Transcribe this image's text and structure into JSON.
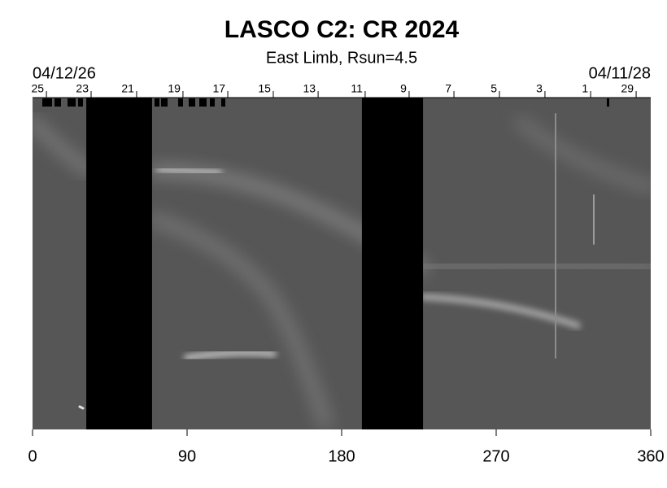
{
  "chart_data": {
    "type": "synoptic",
    "title": "LASCO C2: CR 2024",
    "subtitle": "East Limb, Rsun=4.5",
    "start_date": "04/12/26",
    "end_date": "04/11/28",
    "xlim": [
      0,
      360
    ],
    "xticks": [
      0,
      90,
      180,
      270,
      360
    ],
    "date_ticks": [
      {
        "value": 8.1,
        "label": "25"
      },
      {
        "value": 34.1,
        "label": "23"
      },
      {
        "value": 60.6,
        "label": "21"
      },
      {
        "value": 87.6,
        "label": "19"
      },
      {
        "value": 113.7,
        "label": "17"
      },
      {
        "value": 140.2,
        "label": "15"
      },
      {
        "value": 166.3,
        "label": "13"
      },
      {
        "value": 193.7,
        "label": "11"
      },
      {
        "value": 219.3,
        "label": "9"
      },
      {
        "value": 245.4,
        "label": "7"
      },
      {
        "value": 271.9,
        "label": "5"
      },
      {
        "value": 298.4,
        "label": "3"
      },
      {
        "value": 325.0,
        "label": "1"
      },
      {
        "value": 351.5,
        "label": "29"
      }
    ],
    "gaps": [
      [
        31.3,
        69.6
      ],
      [
        191.8,
        227.4
      ]
    ],
    "gap_color": "#000000",
    "background_color": "#565656"
  }
}
